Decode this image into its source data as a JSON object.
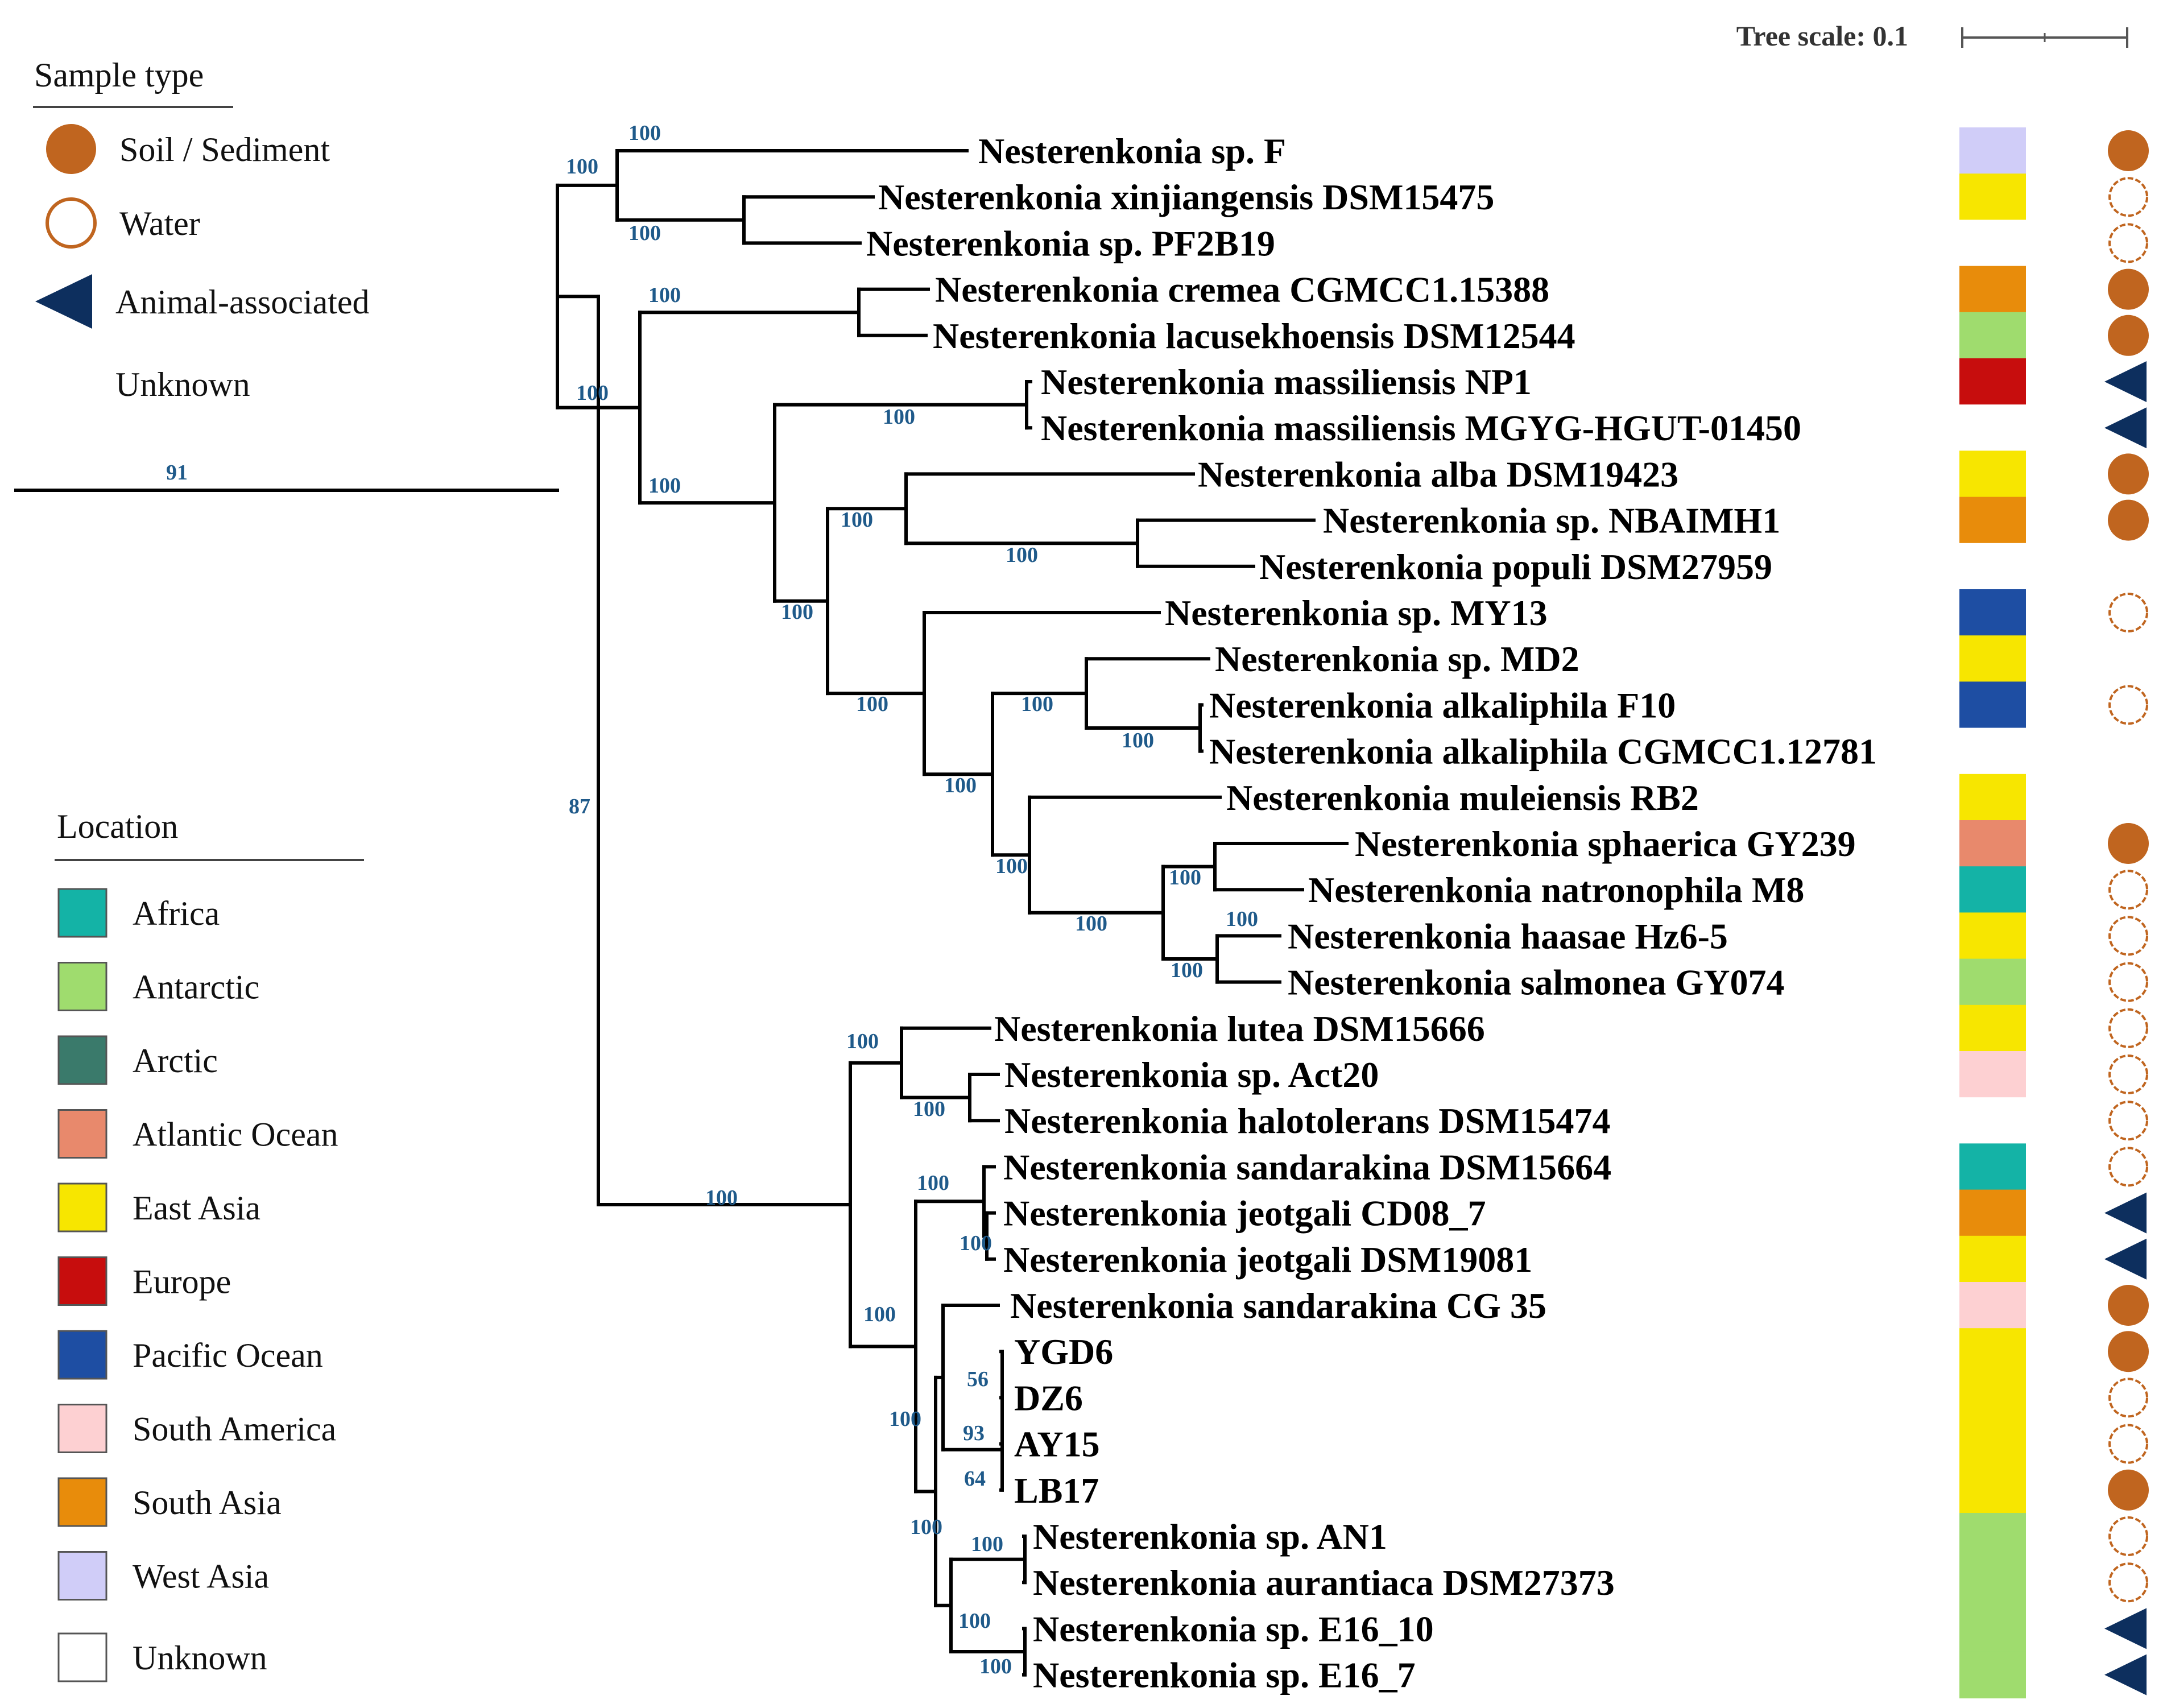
{
  "tree_scale": {
    "label": "Tree scale: 0.1",
    "value": 0.1
  },
  "legend_sample": {
    "title": "Sample type",
    "items": [
      {
        "label": "Soil / Sediment",
        "symbol": "filled-circle",
        "color": "#c0651f"
      },
      {
        "label": "Water",
        "symbol": "open-circle",
        "color": "#c0651f"
      },
      {
        "label": "Animal-associated",
        "symbol": "triangle",
        "color": "#0d2f5e"
      },
      {
        "label": "Unknown",
        "symbol": "none",
        "color": "#ffffff"
      }
    ]
  },
  "legend_location": {
    "title": "Location",
    "items": [
      {
        "label": "Africa",
        "color": "#14b3a6"
      },
      {
        "label": "Antarctic",
        "color": "#9fdc6e"
      },
      {
        "label": "Arctic",
        "color": "#3a7a6b"
      },
      {
        "label": "Atlantic Ocean",
        "color": "#e8896c"
      },
      {
        "label": "East Asia",
        "color": "#f7e600"
      },
      {
        "label": "Europe",
        "color": "#c70d0d"
      },
      {
        "label": "Pacific Ocean",
        "color": "#1e4ea3"
      },
      {
        "label": "South America",
        "color": "#fdd0d2"
      },
      {
        "label": "South Asia",
        "color": "#e88c0b"
      },
      {
        "label": "West Asia",
        "color": "#d0cdf8"
      },
      {
        "label": "Unknown",
        "color": "#ffffff"
      }
    ]
  },
  "leaves": [
    {
      "name": "Nesterenkonia sp. F",
      "location": "West Asia",
      "sample": "Soil / Sediment"
    },
    {
      "name": "Nesterenkonia xinjiangensis DSM15475",
      "location": "East Asia",
      "sample": "Water"
    },
    {
      "name": "Nesterenkonia sp. PF2B19",
      "location": "Unknown",
      "sample": "Water"
    },
    {
      "name": "Nesterenkonia cremea CGMCC1.15388",
      "location": "South Asia",
      "sample": "Soil / Sediment"
    },
    {
      "name": "Nesterenkonia lacusekhoensis DSM12544",
      "location": "Antarctic",
      "sample": "Soil / Sediment"
    },
    {
      "name": "Nesterenkonia massiliensis NP1",
      "location": "Europe",
      "sample": "Animal-associated"
    },
    {
      "name": "Nesterenkonia massiliensis MGYG-HGUT-01450",
      "location": "Unknown",
      "sample": "Animal-associated"
    },
    {
      "name": "Nesterenkonia alba DSM19423",
      "location": "East Asia",
      "sample": "Soil / Sediment"
    },
    {
      "name": "Nesterenkonia sp. NBAIMH1",
      "location": "South Asia",
      "sample": "Soil / Sediment"
    },
    {
      "name": "Nesterenkonia populi DSM27959",
      "location": "Unknown",
      "sample": "Unknown"
    },
    {
      "name": "Nesterenkonia sp. MY13",
      "location": "Pacific Ocean",
      "sample": "Water"
    },
    {
      "name": "Nesterenkonia sp. MD2",
      "location": "East Asia",
      "sample": "Unknown"
    },
    {
      "name": "Nesterenkonia alkaliphila F10",
      "location": "Pacific Ocean",
      "sample": "Water"
    },
    {
      "name": "Nesterenkonia alkaliphila CGMCC1.12781",
      "location": "Unknown",
      "sample": "Unknown"
    },
    {
      "name": "Nesterenkonia muleiensis RB2",
      "location": "East Asia",
      "sample": "Unknown"
    },
    {
      "name": "Nesterenkonia sphaerica GY239",
      "location": "Atlantic Ocean",
      "sample": "Soil / Sediment"
    },
    {
      "name": "Nesterenkonia natronophila M8",
      "location": "Africa",
      "sample": "Water"
    },
    {
      "name": "Nesterenkonia haasae Hz6-5",
      "location": "East Asia",
      "sample": "Water"
    },
    {
      "name": "Nesterenkonia salmonea GY074",
      "location": "Antarctic",
      "sample": "Water"
    },
    {
      "name": "Nesterenkonia lutea DSM15666",
      "location": "East Asia",
      "sample": "Water"
    },
    {
      "name": "Nesterenkonia sp. Act20",
      "location": "South America",
      "sample": "Water"
    },
    {
      "name": "Nesterenkonia halotolerans DSM15474",
      "location": "Unknown",
      "sample": "Water"
    },
    {
      "name": "Nesterenkonia sandarakina DSM15664",
      "location": "Africa",
      "sample": "Water"
    },
    {
      "name": "Nesterenkonia jeotgali CD08_7",
      "location": "South Asia",
      "sample": "Animal-associated"
    },
    {
      "name": "Nesterenkonia jeotgali DSM19081",
      "location": "East Asia",
      "sample": "Animal-associated"
    },
    {
      "name": "Nesterenkonia sandarakina CG 35",
      "location": "South America",
      "sample": "Soil / Sediment"
    },
    {
      "name": "YGD6",
      "location": "East Asia",
      "sample": "Soil / Sediment"
    },
    {
      "name": "DZ6",
      "location": "East Asia",
      "sample": "Water"
    },
    {
      "name": "AY15",
      "location": "East Asia",
      "sample": "Water"
    },
    {
      "name": "LB17",
      "location": "East Asia",
      "sample": "Soil / Sediment"
    },
    {
      "name": "Nesterenkonia sp. AN1",
      "location": "Antarctic",
      "sample": "Water"
    },
    {
      "name": "Nesterenkonia aurantiaca DSM27373",
      "location": "Antarctic",
      "sample": "Water"
    },
    {
      "name": "Nesterenkonia sp. E16_10",
      "location": "Antarctic",
      "sample": "Animal-associated"
    },
    {
      "name": "Nesterenkonia sp. E16_7",
      "location": "Antarctic",
      "sample": "Animal-associated"
    }
  ],
  "bootstrap": [
    "91",
    "87",
    "100",
    "100",
    "100",
    "100",
    "100",
    "100",
    "100",
    "100",
    "100",
    "100",
    "100",
    "100",
    "100",
    "100",
    "100",
    "100",
    "100",
    "100",
    "100",
    "100",
    "100",
    "100",
    "100",
    "100",
    "100",
    "100",
    "56",
    "93",
    "64",
    "100",
    "100",
    "100"
  ]
}
